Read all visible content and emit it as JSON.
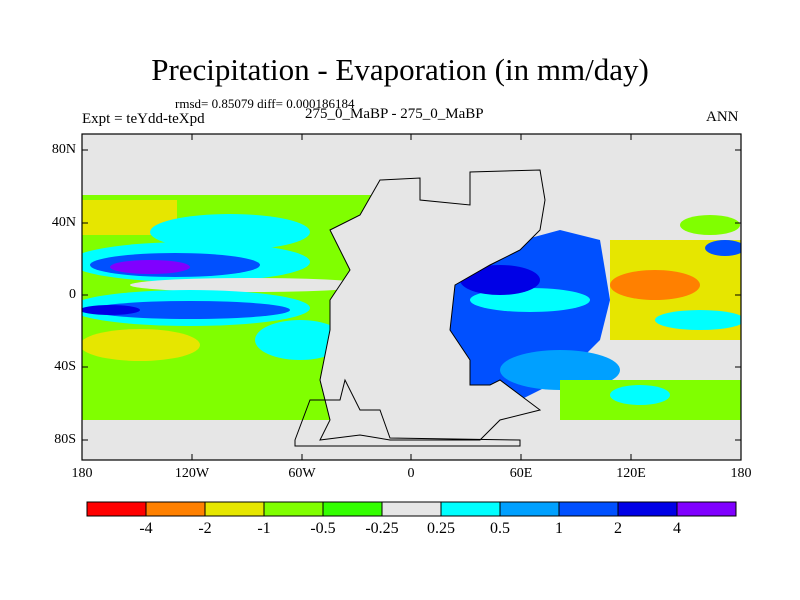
{
  "title": "Precipitation - Evaporation (in mm/day)",
  "stats": "rmsd= 0.85079 diff= 0.000186184",
  "left_label": "Expt = teYdd-teXpd",
  "center_label": "275_0_MaBP - 275_0_MaBP",
  "right_label": "ANN",
  "map": {
    "lat_labels": [
      "80N",
      "40N",
      "0",
      "40S",
      "80S"
    ],
    "lon_labels": [
      "180",
      "120W",
      "60W",
      "0",
      "60E",
      "120E",
      "180"
    ],
    "land_color": "#e6e6e6"
  },
  "colorbar": {
    "colors": [
      "#ff0000",
      "#ff8000",
      "#e6e600",
      "#80ff00",
      "#33ff00",
      "#e6e6e6",
      "#00ffff",
      "#00a0ff",
      "#0050ff",
      "#0000e6",
      "#8000ff"
    ],
    "labels": [
      "-4",
      "-2",
      "-1",
      "-0.5",
      "-0.25",
      "0.25",
      "0.5",
      "1",
      "2",
      "4"
    ]
  }
}
